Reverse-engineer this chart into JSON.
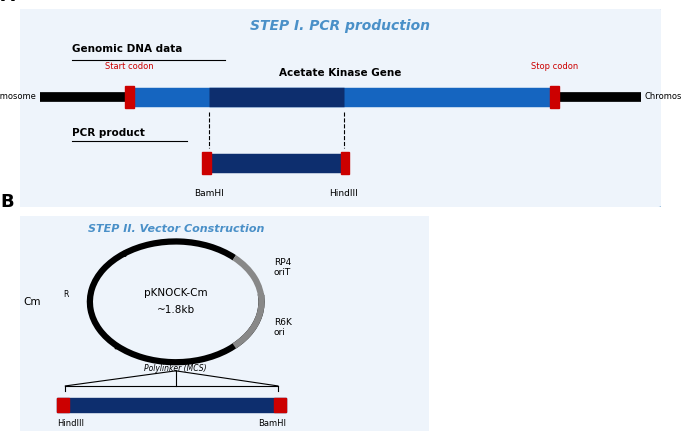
{
  "bg_color": "#ffffff",
  "panel_A": {
    "box_color": "#4a90c8",
    "title": "STEP I. PCR production",
    "genomic_label": "Genomic DNA data",
    "gene_label": "Acetate Kinase Gene",
    "pcr_label": "PCR product",
    "chr_label_left": "Chromosome",
    "chr_label_right": "Chromosome",
    "start_codon": "Start codon",
    "stop_codon": "Stop codon",
    "bamhi_label": "BamHI",
    "hindiii_label": "HindIII",
    "chr_color": "#000000",
    "gene_color": "#1565c0",
    "gene_mid_color": "#0d2e6e",
    "red_site_color": "#cc0000",
    "pcr_color": "#0d2e6e"
  },
  "panel_B": {
    "box_color": "#4a90c8",
    "title": "STEP II. Vector Construction",
    "plasmid_line1": "pKNOCK-Cm",
    "plasmid_line2": "~1.8kb",
    "cm_label": "Cm",
    "cm_super": "R",
    "rp4_label": "RP4\noriT",
    "r6k_label": "R6K\nori",
    "mcs_label": "Polylinker (MCS)",
    "hindiii_label": "HindIII",
    "bamhi_label": "BamHI",
    "black_arc_color": "#000000",
    "gray_arc_color": "#888888",
    "pcr_color": "#0d2e6e",
    "red_site_color": "#cc0000"
  }
}
